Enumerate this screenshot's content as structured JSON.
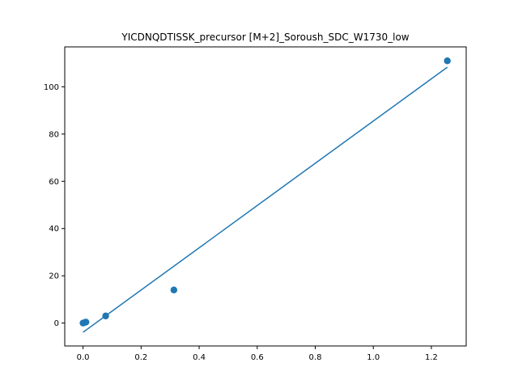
{
  "chart_data": {
    "type": "scatter",
    "title": "YICDNQDTISSK_precursor [M+2]_Soroush_SDC_W1730_low",
    "xlabel": "",
    "ylabel": "",
    "xlim": [
      -0.063,
      1.32
    ],
    "ylim": [
      -9.7,
      116.9
    ],
    "xticks": [
      0.0,
      0.2,
      0.4,
      0.6,
      0.8,
      1.0,
      1.2
    ],
    "xtick_labels": [
      "0.0",
      "0.2",
      "0.4",
      "0.6",
      "0.8",
      "1.0",
      "1.2"
    ],
    "yticks": [
      0,
      20,
      40,
      60,
      80,
      100
    ],
    "ytick_labels": [
      "0",
      "20",
      "40",
      "60",
      "80",
      "100"
    ],
    "grid": false,
    "series": [
      {
        "type": "scatter",
        "color": "#1f77b4",
        "points": [
          {
            "x": 0.0,
            "y": 0.0
          },
          {
            "x": 0.005,
            "y": 0.2
          },
          {
            "x": 0.01,
            "y": 0.4
          },
          {
            "x": 0.078,
            "y": 3.0
          },
          {
            "x": 0.313,
            "y": 14.0
          },
          {
            "x": 1.255,
            "y": 111.0
          }
        ]
      },
      {
        "type": "line",
        "color": "#1f77b4",
        "points": [
          {
            "x": 0.0,
            "y": -3.9
          },
          {
            "x": 1.255,
            "y": 108.3
          }
        ]
      }
    ]
  }
}
